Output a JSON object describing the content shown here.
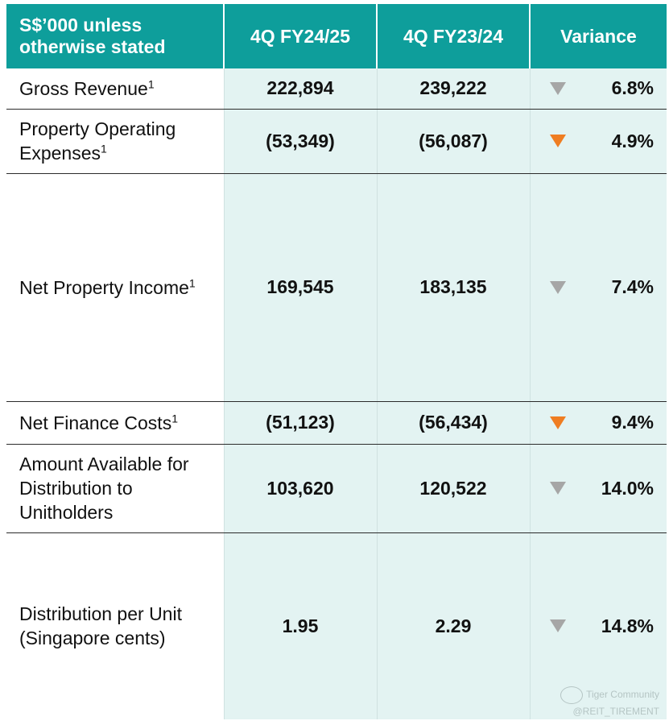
{
  "table": {
    "header": {
      "label": "S$’000 unless otherwise stated",
      "col1": "4Q FY24/25",
      "col2": "4Q FY23/24",
      "col3": "Variance"
    },
    "rows": [
      {
        "label": "Gross Revenue",
        "sup": "1",
        "v1": "222,894",
        "v2": "239,222",
        "arrow": "gray",
        "variance": "6.8%"
      },
      {
        "label": "Property Operating Expenses",
        "sup": "1",
        "v1": "(53,349)",
        "v2": "(56,087)",
        "arrow": "orange",
        "variance": "4.9%"
      },
      {
        "label": "Net Property Income",
        "sup": "1",
        "v1": "169,545",
        "v2": "183,135",
        "arrow": "gray",
        "variance": "7.4%"
      },
      {
        "label": "Net Finance Costs",
        "sup": "1",
        "v1": "(51,123)",
        "v2": "(56,434)",
        "arrow": "orange",
        "variance": "9.4%"
      },
      {
        "label": "Amount Available for Distribution to Unitholders",
        "sup": "",
        "v1": "103,620",
        "v2": "120,522",
        "arrow": "gray",
        "variance": "14.0%"
      },
      {
        "label": "Distribution per Unit (Singapore cents)",
        "sup": "",
        "v1": "1.95",
        "v2": "2.29",
        "arrow": "gray",
        "variance": "14.8%"
      }
    ]
  },
  "colors": {
    "header_bg": "#0e9e9b",
    "cell_bg": "#e3f3f2",
    "arrow_gray": "#a6a6a6",
    "arrow_orange": "#ef7d22"
  },
  "watermark": {
    "line1": "Tiger Community",
    "line2": "@REIT_TIREMENT"
  }
}
